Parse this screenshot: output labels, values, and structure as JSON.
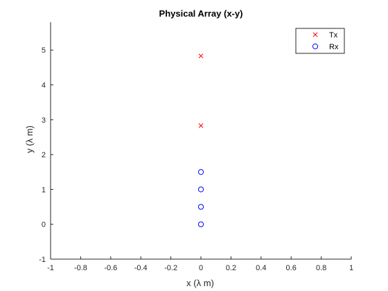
{
  "chart_data": {
    "type": "scatter",
    "title": "Physical Array (x-y)",
    "xlabel": "x (λ m)",
    "ylabel": "y (λ m)",
    "xlim": [
      -1,
      1
    ],
    "ylim": [
      -1,
      5.8
    ],
    "xticks": [
      -1,
      -0.8,
      -0.6,
      -0.4,
      -0.2,
      0,
      0.2,
      0.4,
      0.6,
      0.8,
      1
    ],
    "xtick_labels": [
      "-1",
      "-0.8",
      "-0.6",
      "-0.4",
      "-0.2",
      "0",
      "0.2",
      "0.4",
      "0.6",
      "0.8",
      "1"
    ],
    "yticks": [
      -1,
      0,
      1,
      2,
      3,
      4,
      5
    ],
    "ytick_labels": [
      "-1",
      "0",
      "1",
      "2",
      "3",
      "4",
      "5"
    ],
    "grid": false,
    "legend_position": "top-right",
    "series": [
      {
        "name": "Tx",
        "marker": "x",
        "color": "#ff0000",
        "points": [
          {
            "x": 0,
            "y": 4.83
          },
          {
            "x": 0,
            "y": 2.83
          }
        ]
      },
      {
        "name": "Rx",
        "marker": "o",
        "color": "#0000ff",
        "points": [
          {
            "x": 0,
            "y": 0
          },
          {
            "x": 0,
            "y": 0.5
          },
          {
            "x": 0,
            "y": 1
          },
          {
            "x": 0,
            "y": 1.5
          }
        ]
      }
    ]
  }
}
